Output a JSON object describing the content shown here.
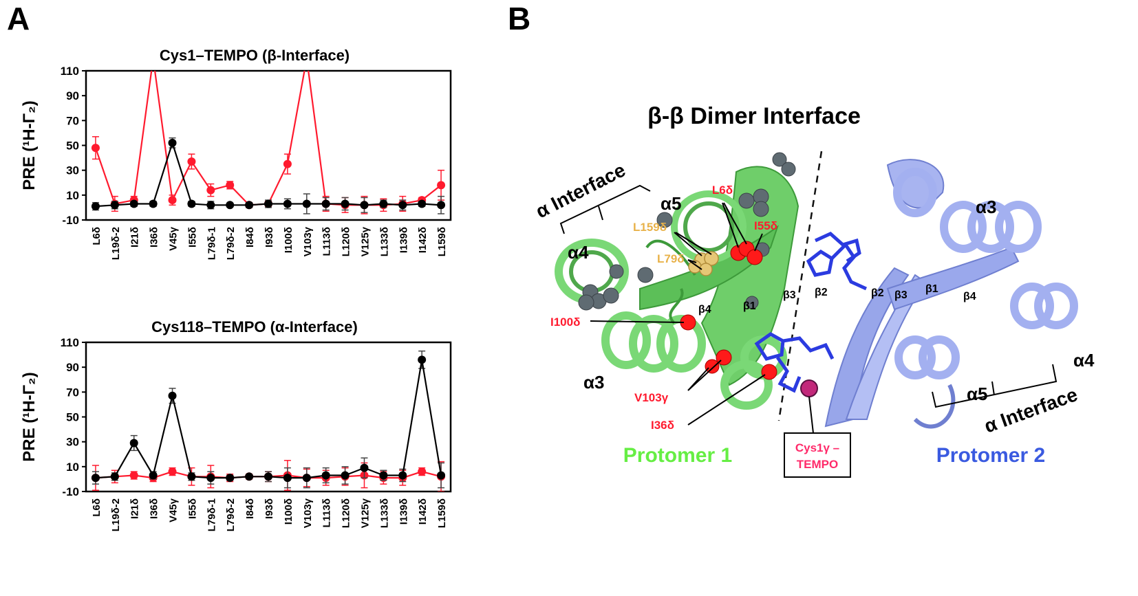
{
  "panels": {
    "a_label": "A",
    "b_label": "B"
  },
  "chart_data": [
    {
      "type": "line",
      "title": "Cys1–TEMPO (β-Interface)",
      "xlabel": "",
      "ylabel": "PRE (¹H-Γ₂)",
      "ylim": [
        -10,
        110
      ],
      "yticks": [
        -10,
        10,
        30,
        50,
        70,
        90,
        110
      ],
      "grid": false,
      "legend": null,
      "categories": [
        "L6δ",
        "L19δ-2",
        "I21δ",
        "I36δ",
        "V45γ",
        "I55δ",
        "L79δ-1",
        "L79δ-2",
        "I84δ",
        "I93δ",
        "I100δ",
        "V103γ",
        "L113δ",
        "L120δ",
        "V125γ",
        "L133δ",
        "I139δ",
        "I142δ",
        "L159δ"
      ],
      "series": [
        {
          "name": "red",
          "color": "#ff1a2e",
          "values": [
            48,
            3,
            6,
            120,
            6,
            37,
            14,
            18,
            2,
            3,
            35,
            120,
            3,
            2,
            2,
            2,
            3,
            6,
            18
          ],
          "errors": [
            9,
            6,
            3,
            0,
            4,
            6,
            5,
            3,
            2,
            2,
            8,
            0,
            6,
            6,
            7,
            5,
            6,
            2,
            12
          ],
          "note": "I36δ and V103γ exceed the 110 axis limit (off-scale)"
        },
        {
          "name": "black",
          "color": "#000000",
          "values": [
            1,
            2,
            3,
            3,
            52,
            3,
            2,
            2,
            2,
            3,
            3,
            3,
            3,
            3,
            2,
            3,
            2,
            3,
            2
          ],
          "errors": [
            3,
            3,
            2,
            2,
            4,
            2,
            3,
            1,
            2,
            3,
            4,
            8,
            5,
            5,
            6,
            3,
            4,
            2,
            7
          ]
        }
      ]
    },
    {
      "type": "line",
      "title": "Cys118–TEMPO (α-Interface)",
      "xlabel": "",
      "ylabel": "PRE (¹H-Γ₂)",
      "ylim": [
        -10,
        110
      ],
      "yticks": [
        -10,
        10,
        30,
        50,
        70,
        90,
        110
      ],
      "grid": false,
      "legend": null,
      "categories": [
        "L6δ",
        "L19δ-2",
        "I21δ",
        "I36δ",
        "V45γ",
        "I55δ",
        "L79δ-1",
        "L79δ-2",
        "I84δ",
        "I93δ",
        "I100δ",
        "V103γ",
        "L113δ",
        "L120δ",
        "V125γ",
        "L133δ",
        "I139δ",
        "I142δ",
        "L159δ"
      ],
      "series": [
        {
          "name": "red",
          "color": "#ff1a2e",
          "values": [
            1,
            2,
            3,
            1,
            6,
            2,
            2,
            1,
            2,
            2,
            3,
            1,
            1,
            2,
            3,
            1,
            1,
            6,
            2
          ],
          "errors": [
            10,
            5,
            3,
            3,
            3,
            7,
            9,
            3,
            2,
            4,
            12,
            7,
            6,
            7,
            10,
            5,
            6,
            3,
            12
          ]
        },
        {
          "name": "black",
          "color": "#000000",
          "values": [
            1,
            2,
            29,
            3,
            67,
            2,
            1,
            1,
            2,
            2,
            1,
            1,
            3,
            3,
            9,
            3,
            3,
            96,
            3
          ],
          "errors": [
            5,
            3,
            6,
            3,
            6,
            3,
            5,
            2,
            1,
            4,
            8,
            8,
            6,
            7,
            8,
            4,
            5,
            7,
            10
          ]
        }
      ]
    }
  ],
  "structure": {
    "title": "β-β Dimer Interface",
    "protomer1_label": "Protomer 1",
    "protomer2_label": "Protomer 2",
    "protomer1_color": "#66ee44",
    "protomer2_color": "#3a5ae0",
    "interface_left": "α Interface",
    "interface_right": "α Interface",
    "helix_labels_p1": {
      "a4": "α4",
      "a5": "α5",
      "a3": "α3"
    },
    "helix_labels_p2": {
      "a3": "α3",
      "a4": "α4",
      "a5": "α5"
    },
    "strand_labels_p1": {
      "b4": "β4",
      "b1": "β1",
      "b3": "β3",
      "b2": "β2"
    },
    "strand_labels_p2": {
      "b2": "β2",
      "b3": "β3",
      "b1": "β1",
      "b4": "β4"
    },
    "residues_red": {
      "l6": "L6δ",
      "i55": "I55δ",
      "i100": "I100δ",
      "v103": "V103γ",
      "i36": "I36δ"
    },
    "residues_yellow": {
      "l159": "L159δ",
      "l79": "L79δ"
    },
    "tempo_box_line1": "Cys1γ –",
    "tempo_box_line2": "TEMPO",
    "tempo_color": "#ff2a6a"
  }
}
